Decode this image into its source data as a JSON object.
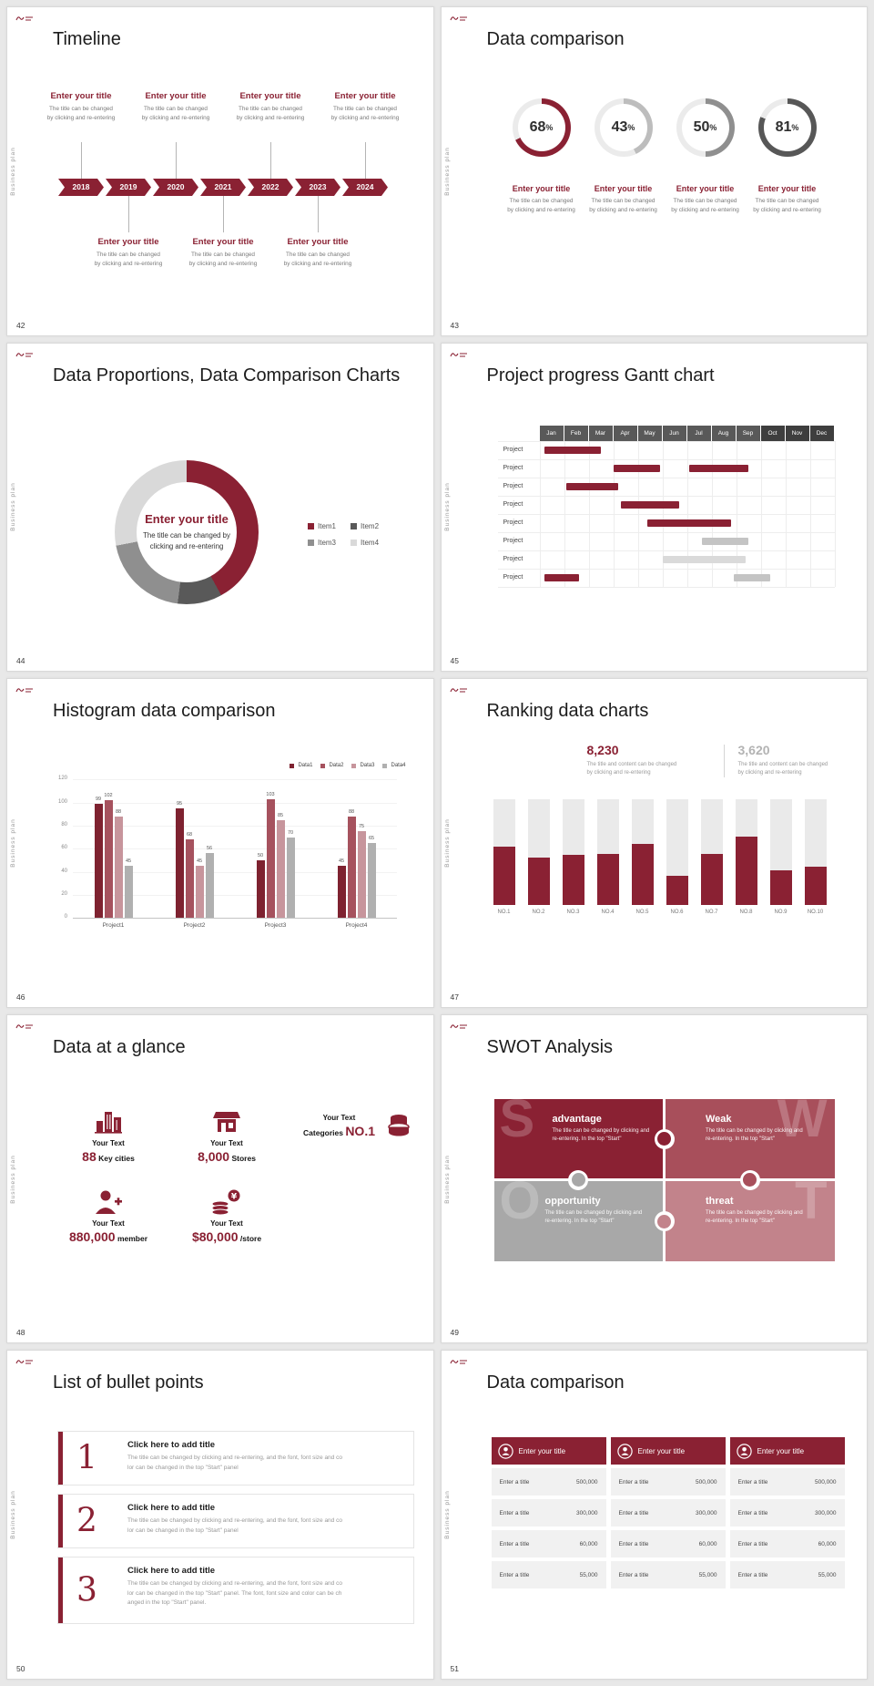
{
  "page": {
    "bg": "#e8e8e8",
    "accent": "#8a2133"
  },
  "common": {
    "sidebar_label": "Business plan",
    "brand": "logo-mark"
  },
  "slides": {
    "s42": {
      "num": "42",
      "title": "Timeline",
      "years": [
        "2018",
        "2019",
        "2020",
        "2021",
        "2022",
        "2023",
        "2024"
      ],
      "entry_title": "Enter your title",
      "entry_desc_l1": "The title can be changed",
      "entry_desc_l2": "by clicking and re-entering",
      "above": [
        0,
        2,
        4,
        6
      ],
      "below": [
        1,
        3,
        5
      ]
    },
    "s43": {
      "num": "43",
      "title": "Data comparison",
      "entry_title": "Enter your title",
      "entry_desc_l1": "The title can be changed",
      "entry_desc_l2": "by clicking and re-entering",
      "rings": [
        {
          "pct": 68,
          "color": "#8a2133"
        },
        {
          "pct": 43,
          "color": "#bdbdbd"
        },
        {
          "pct": 50,
          "color": "#8f8f8f"
        },
        {
          "pct": 81,
          "color": "#575757"
        }
      ]
    },
    "s44": {
      "num": "44",
      "title": "Data Proportions, Data Comparison Charts",
      "center_title": "Enter your title",
      "center_desc_l1": "The title can be changed by",
      "center_desc_l2": "clicking and re-entering",
      "segments": [
        {
          "label": "Item1",
          "value": 42,
          "color": "#8a2133"
        },
        {
          "label": "Item2",
          "value": 10,
          "color": "#595959"
        },
        {
          "label": "Item3",
          "value": 20,
          "color": "#8f8f8f"
        },
        {
          "label": "Item4",
          "value": 28,
          "color": "#d9d9d9"
        }
      ]
    },
    "s45": {
      "num": "45",
      "title": "Project progress Gantt chart",
      "months": [
        "Jan",
        "Feb",
        "Mar",
        "Apr",
        "May",
        "Jun",
        "Jul",
        "Aug",
        "Sep",
        "Oct",
        "Nov",
        "Dec"
      ],
      "dark_from": 9,
      "row_label": "Project",
      "rows": 8,
      "bars": [
        {
          "row": 0,
          "start": 0.2,
          "len": 2.3,
          "color": "#8a2133"
        },
        {
          "row": 1,
          "start": 3.0,
          "len": 1.9,
          "color": "#8a2133"
        },
        {
          "row": 1,
          "start": 6.1,
          "len": 2.4,
          "color": "#8a2133"
        },
        {
          "row": 2,
          "start": 1.1,
          "len": 2.1,
          "color": "#8a2133"
        },
        {
          "row": 3,
          "start": 3.3,
          "len": 2.4,
          "color": "#8a2133"
        },
        {
          "row": 4,
          "start": 4.4,
          "len": 3.4,
          "color": "#8a2133"
        },
        {
          "row": 5,
          "start": 6.6,
          "len": 1.9,
          "color": "#c4c4c4"
        },
        {
          "row": 6,
          "start": 5.0,
          "len": 3.4,
          "color": "#dadada"
        },
        {
          "row": 7,
          "start": 0.2,
          "len": 1.4,
          "color": "#8a2133"
        },
        {
          "row": 7,
          "start": 7.9,
          "len": 1.5,
          "color": "#c4c4c4"
        }
      ]
    },
    "s46": {
      "num": "46",
      "title": "Histogram data comparison",
      "chart": {
        "type": "bar",
        "legend": [
          "Data1",
          "Data2",
          "Data3",
          "Data4"
        ],
        "colors": [
          "#7e2230",
          "#a6525e",
          "#c7959c",
          "#b0b0b0"
        ],
        "categories": [
          "Project1",
          "Project2",
          "Project3",
          "Project4"
        ],
        "values": [
          [
            99,
            102,
            88,
            45
          ],
          [
            95,
            68,
            45,
            56
          ],
          [
            50,
            103,
            85,
            70
          ],
          [
            45,
            88,
            75,
            65
          ]
        ],
        "ymax": 120,
        "yticks": [
          0,
          20,
          40,
          60,
          80,
          100,
          120
        ]
      }
    },
    "s47": {
      "num": "47",
      "title": "Ranking data charts",
      "stat1_value": "8,230",
      "stat2_value": "3,620",
      "stat_desc_l1": "The title and content can be changed",
      "stat_desc_l2": "by clicking and re-entering",
      "labels": [
        "NO.1",
        "NO.2",
        "NO.3",
        "NO.4",
        "NO.5",
        "NO.6",
        "NO.7",
        "NO.8",
        "NO.9",
        "NO.10"
      ],
      "fills": [
        0.55,
        0.45,
        0.47,
        0.48,
        0.58,
        0.28,
        0.48,
        0.65,
        0.33,
        0.36
      ]
    },
    "s48": {
      "num": "48",
      "title": "Data at a glance",
      "items": [
        {
          "icon": "city-icon",
          "label": "Your Text",
          "big": "88",
          "small": "Key cities",
          "big_first": true
        },
        {
          "icon": "store-icon",
          "label": "Your Text",
          "big": "8,000",
          "small": "Stores",
          "big_first": true
        },
        {
          "icon": "categories-icon",
          "label": "Your Text",
          "big": "NO.1",
          "small": "Categories",
          "big_first": false
        },
        {
          "icon": "member-icon",
          "label": "Your Text",
          "big": "880,000",
          "small": "member",
          "big_first": true
        },
        {
          "icon": "money-icon",
          "label": "Your Text",
          "big": "$80,000",
          "small": "/store",
          "big_first": true
        }
      ]
    },
    "s49": {
      "num": "49",
      "title": "SWOT Analysis",
      "pieces": [
        {
          "letter": "S",
          "word": "advantage",
          "desc": "The title can be changed by clicking and re-entering. In the top \"Start\"",
          "color": "#8a2133"
        },
        {
          "letter": "W",
          "word": "Weak",
          "desc": "The title can be changed by clicking and re-entering. In the top \"Start\"",
          "color": "#a84f5b"
        },
        {
          "letter": "O",
          "word": "opportunity",
          "desc": "The title can be changed by clicking and re-entering. In the top \"Start\"",
          "color": "#a8a8a8"
        },
        {
          "letter": "T",
          "word": "threat",
          "desc": "The title can be changed by clicking and re-entering. In the top \"Start\"",
          "color": "#c2838b"
        }
      ]
    },
    "s50": {
      "num": "50",
      "title": "List of bullet points",
      "items": [
        {
          "numeral": "1",
          "title": "Click here to add title",
          "desc": [
            "The title can be changed by clicking and re-entering, and the font, font size and co",
            "lor can be changed in the top \"Start\" panel"
          ]
        },
        {
          "numeral": "2",
          "title": "Click here to add title",
          "desc": [
            "The title can be changed by clicking and re-entering, and the font, font size and co",
            "lor can be changed in the top \"Start\" panel"
          ]
        },
        {
          "numeral": "3",
          "title": "Click here to add title",
          "desc": [
            "The title can be changed by clicking and re-entering, and the font, font size and co",
            "lor can be changed in the top \"Start\" panel. The font, font size and color can be ch",
            "anged in the top \"Start\" panel."
          ]
        }
      ]
    },
    "s51": {
      "num": "51",
      "title": "Data comparison",
      "table_count": 3,
      "table_header": "Enter your title",
      "row_label": "Enter a title",
      "values": [
        "500,000",
        "300,000",
        "60,000",
        "55,000"
      ]
    }
  }
}
